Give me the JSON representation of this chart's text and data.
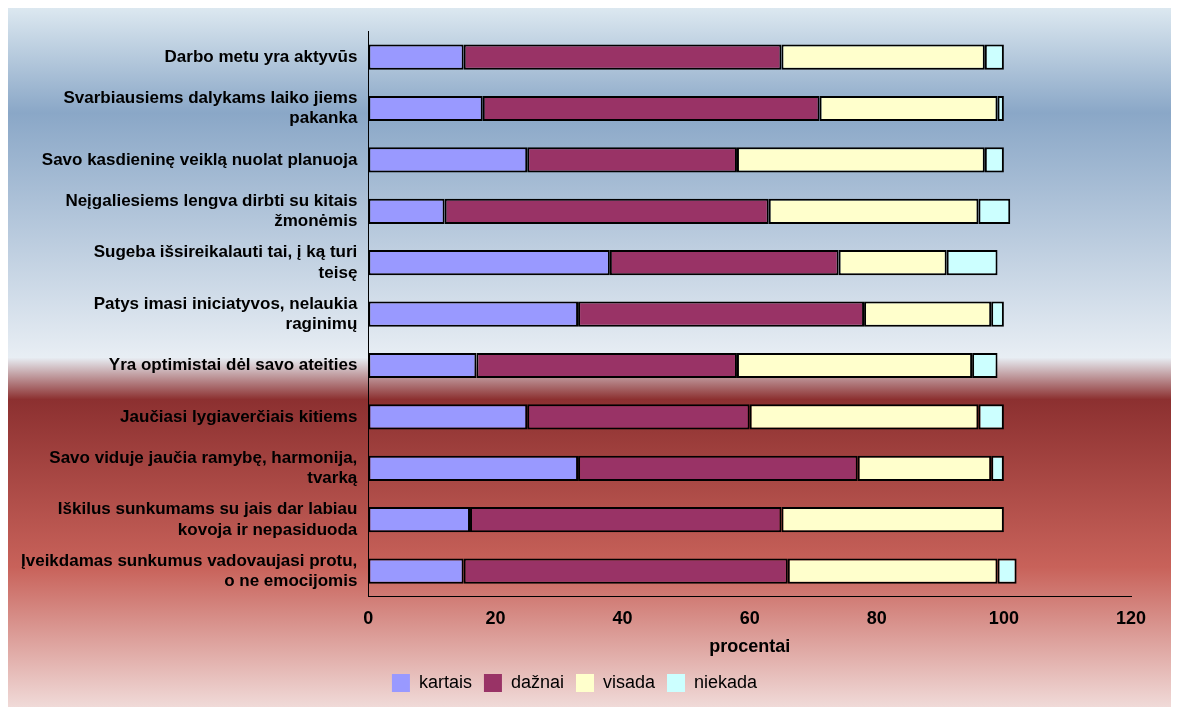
{
  "chart_data": {
    "type": "bar",
    "orientation": "horizontal",
    "stacked": true,
    "xlabel": "procentai",
    "categories": [
      "Darbo metu yra aktyvūs",
      "Svarbiausiems dalykams laiko jiems pakanka",
      "Savo kasdieninę veiklą nuolat planuoja",
      "Neįgaliesiems lengva dirbti su kitais žmonėmis",
      "Sugeba išsireikalauti tai, į ką turi teisę",
      "Patys imasi iniciatyvos, nelaukia raginimų",
      "Yra optimistai dėl savo ateities",
      "Jaučiasi lygiaverčiais kitiems",
      "Savo viduje jaučia ramybę, harmonija, tvarką",
      "Iškilus sunkumams su jais dar labiau kovoja ir nepasiduoda",
      "Įveikdamas sunkumus vadovaujasi protu, o ne emocijomis"
    ],
    "series": [
      {
        "name": "kartais",
        "color": "#9999ff",
        "values": [
          15,
          18,
          25,
          12,
          38,
          33,
          17,
          25,
          33,
          16,
          15
        ]
      },
      {
        "name": "dažnai",
        "color": "#993366",
        "values": [
          50,
          53,
          33,
          51,
          36,
          45,
          41,
          35,
          44,
          49,
          51
        ]
      },
      {
        "name": "visada",
        "color": "#ffffcc",
        "values": [
          32,
          28,
          39,
          33,
          17,
          20,
          37,
          36,
          21,
          35,
          33
        ]
      },
      {
        "name": "niekada",
        "color": "#ccffff",
        "values": [
          3,
          1,
          3,
          5,
          8,
          2,
          4,
          4,
          2,
          0,
          3
        ]
      }
    ],
    "xlim": [
      0,
      120
    ],
    "xticks": [
      0,
      20,
      40,
      60,
      80,
      100,
      120
    ],
    "grid": false,
    "legend": "bottom"
  }
}
